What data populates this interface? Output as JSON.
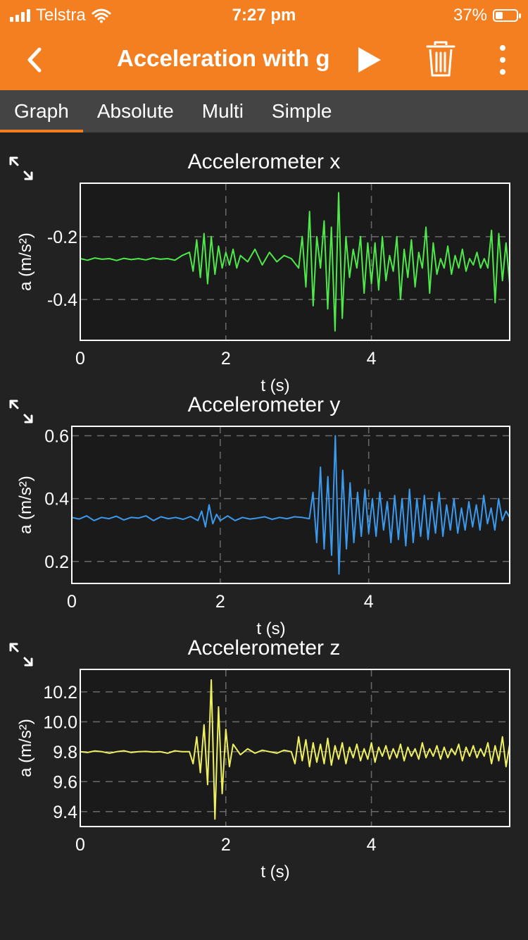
{
  "status": {
    "carrier": "Telstra",
    "time": "7:27 pm",
    "battery": "37%",
    "battery_level": 0.37
  },
  "toolbar": {
    "title": "Acceleration with g",
    "accent": "#f47f20"
  },
  "tabs": [
    {
      "label": "Graph",
      "active": true
    },
    {
      "label": "Absolute",
      "active": false
    },
    {
      "label": "Multi",
      "active": false
    },
    {
      "label": "Simple",
      "active": false
    }
  ],
  "chart_data": [
    {
      "type": "line",
      "title": "Accelerometer x",
      "xlabel": "t (s)",
      "ylabel": "a (m/s²)",
      "xlim": [
        0,
        5.9
      ],
      "ylim": [
        -0.53,
        -0.03
      ],
      "xticks": [
        {
          "v": 0,
          "label": "0"
        },
        {
          "v": 2,
          "label": "2"
        },
        {
          "v": 4,
          "label": "4"
        }
      ],
      "yticks": [
        {
          "v": -0.2,
          "label": "-0.2"
        },
        {
          "v": -0.4,
          "label": "-0.4"
        }
      ],
      "color": "#4ee84a",
      "grid": true,
      "series": [
        {
          "x": [
            0.0,
            0.1,
            0.2,
            0.3,
            0.4,
            0.5,
            0.6,
            0.7,
            0.8,
            0.9,
            1.0,
            1.1,
            1.2,
            1.3,
            1.4,
            1.5,
            1.55,
            1.6,
            1.65,
            1.7,
            1.75,
            1.8,
            1.85,
            1.9,
            1.95,
            2.0,
            2.05,
            2.1,
            2.15,
            2.2,
            2.3,
            2.4,
            2.5,
            2.6,
            2.7,
            2.8,
            2.9,
            3.0,
            3.05,
            3.1,
            3.15,
            3.2,
            3.25,
            3.3,
            3.35,
            3.4,
            3.45,
            3.5,
            3.55,
            3.6,
            3.65,
            3.7,
            3.75,
            3.8,
            3.85,
            3.9,
            3.95,
            4.0,
            4.05,
            4.1,
            4.15,
            4.2,
            4.25,
            4.3,
            4.35,
            4.4,
            4.45,
            4.5,
            4.55,
            4.6,
            4.65,
            4.7,
            4.75,
            4.8,
            4.85,
            4.9,
            4.95,
            5.0,
            5.05,
            5.1,
            5.15,
            5.2,
            5.25,
            5.3,
            5.35,
            5.4,
            5.45,
            5.5,
            5.55,
            5.6,
            5.65,
            5.7,
            5.75,
            5.8,
            5.85,
            5.9
          ],
          "y": [
            -0.27,
            -0.275,
            -0.268,
            -0.272,
            -0.27,
            -0.276,
            -0.269,
            -0.273,
            -0.27,
            -0.274,
            -0.268,
            -0.272,
            -0.27,
            -0.275,
            -0.26,
            -0.25,
            -0.31,
            -0.21,
            -0.33,
            -0.19,
            -0.35,
            -0.2,
            -0.32,
            -0.23,
            -0.3,
            -0.25,
            -0.29,
            -0.24,
            -0.3,
            -0.26,
            -0.28,
            -0.24,
            -0.29,
            -0.25,
            -0.28,
            -0.26,
            -0.27,
            -0.3,
            -0.2,
            -0.36,
            -0.12,
            -0.42,
            -0.2,
            -0.3,
            -0.15,
            -0.43,
            -0.17,
            -0.5,
            -0.06,
            -0.46,
            -0.2,
            -0.33,
            -0.24,
            -0.3,
            -0.2,
            -0.38,
            -0.22,
            -0.35,
            -0.22,
            -0.37,
            -0.2,
            -0.34,
            -0.26,
            -0.31,
            -0.2,
            -0.4,
            -0.24,
            -0.33,
            -0.21,
            -0.36,
            -0.25,
            -0.3,
            -0.17,
            -0.38,
            -0.22,
            -0.32,
            -0.27,
            -0.3,
            -0.23,
            -0.32,
            -0.26,
            -0.3,
            -0.24,
            -0.31,
            -0.27,
            -0.29,
            -0.25,
            -0.3,
            -0.27,
            -0.3,
            -0.18,
            -0.41,
            -0.19,
            -0.34,
            -0.22,
            -0.35
          ]
        }
      ]
    },
    {
      "type": "line",
      "title": "Accelerometer y",
      "xlabel": "t (s)",
      "ylabel": "a (m/s²)",
      "xlim": [
        0,
        5.9
      ],
      "ylim": [
        0.13,
        0.63
      ],
      "xticks": [
        {
          "v": 0,
          "label": "0"
        },
        {
          "v": 2,
          "label": "2"
        },
        {
          "v": 4,
          "label": "4"
        }
      ],
      "yticks": [
        {
          "v": 0.6,
          "label": "0.6"
        },
        {
          "v": 0.4,
          "label": "0.4"
        },
        {
          "v": 0.2,
          "label": "0.2"
        }
      ],
      "color": "#3b9aee",
      "grid": true,
      "series": [
        {
          "x": [
            0.0,
            0.1,
            0.2,
            0.3,
            0.4,
            0.5,
            0.6,
            0.7,
            0.8,
            0.9,
            1.0,
            1.1,
            1.2,
            1.3,
            1.4,
            1.5,
            1.6,
            1.7,
            1.75,
            1.8,
            1.85,
            1.9,
            1.95,
            2.0,
            2.1,
            2.2,
            2.3,
            2.4,
            2.5,
            2.6,
            2.7,
            2.8,
            2.9,
            3.0,
            3.1,
            3.2,
            3.25,
            3.3,
            3.35,
            3.4,
            3.45,
            3.5,
            3.55,
            3.6,
            3.65,
            3.7,
            3.75,
            3.8,
            3.85,
            3.9,
            3.95,
            4.0,
            4.05,
            4.1,
            4.15,
            4.2,
            4.25,
            4.3,
            4.35,
            4.4,
            4.45,
            4.5,
            4.55,
            4.6,
            4.65,
            4.7,
            4.75,
            4.8,
            4.85,
            4.9,
            4.95,
            5.0,
            5.05,
            5.1,
            5.15,
            5.2,
            5.25,
            5.3,
            5.35,
            5.4,
            5.45,
            5.5,
            5.55,
            5.6,
            5.65,
            5.7,
            5.75,
            5.8,
            5.85,
            5.9
          ],
          "y": [
            0.34,
            0.335,
            0.345,
            0.33,
            0.34,
            0.336,
            0.344,
            0.332,
            0.34,
            0.338,
            0.345,
            0.33,
            0.342,
            0.336,
            0.34,
            0.334,
            0.343,
            0.33,
            0.36,
            0.31,
            0.38,
            0.32,
            0.35,
            0.33,
            0.345,
            0.33,
            0.34,
            0.335,
            0.338,
            0.342,
            0.334,
            0.34,
            0.336,
            0.342,
            0.34,
            0.336,
            0.42,
            0.26,
            0.5,
            0.24,
            0.47,
            0.22,
            0.6,
            0.16,
            0.49,
            0.24,
            0.45,
            0.26,
            0.42,
            0.28,
            0.43,
            0.29,
            0.4,
            0.28,
            0.42,
            0.3,
            0.39,
            0.26,
            0.41,
            0.27,
            0.4,
            0.25,
            0.43,
            0.26,
            0.4,
            0.28,
            0.41,
            0.27,
            0.39,
            0.29,
            0.42,
            0.28,
            0.38,
            0.3,
            0.4,
            0.29,
            0.37,
            0.3,
            0.39,
            0.31,
            0.38,
            0.3,
            0.41,
            0.32,
            0.37,
            0.3,
            0.4,
            0.33,
            0.36,
            0.34
          ]
        }
      ]
    },
    {
      "type": "line",
      "title": "Accelerometer z",
      "xlabel": "t (s)",
      "ylabel": "a (m/s²)",
      "xlim": [
        0,
        5.9
      ],
      "ylim": [
        9.3,
        10.35
      ],
      "xticks": [
        {
          "v": 0,
          "label": "0"
        },
        {
          "v": 2,
          "label": "2"
        },
        {
          "v": 4,
          "label": "4"
        }
      ],
      "yticks": [
        {
          "v": 10.2,
          "label": "10.2"
        },
        {
          "v": 10.0,
          "label": "10.0"
        },
        {
          "v": 9.8,
          "label": "9.8"
        },
        {
          "v": 9.6,
          "label": "9.6"
        },
        {
          "v": 9.4,
          "label": "9.4"
        }
      ],
      "color": "#eef062",
      "grid": true,
      "series": [
        {
          "x": [
            0.0,
            0.1,
            0.2,
            0.3,
            0.4,
            0.5,
            0.6,
            0.7,
            0.8,
            0.9,
            1.0,
            1.1,
            1.2,
            1.3,
            1.4,
            1.5,
            1.55,
            1.6,
            1.65,
            1.7,
            1.75,
            1.8,
            1.85,
            1.9,
            1.95,
            2.0,
            2.05,
            2.1,
            2.2,
            2.3,
            2.4,
            2.5,
            2.6,
            2.7,
            2.8,
            2.9,
            2.95,
            3.0,
            3.05,
            3.1,
            3.15,
            3.2,
            3.25,
            3.3,
            3.35,
            3.4,
            3.45,
            3.5,
            3.55,
            3.6,
            3.65,
            3.7,
            3.75,
            3.8,
            3.85,
            3.9,
            3.95,
            4.0,
            4.05,
            4.1,
            4.15,
            4.2,
            4.25,
            4.3,
            4.35,
            4.4,
            4.45,
            4.5,
            4.55,
            4.6,
            4.65,
            4.7,
            4.75,
            4.8,
            4.85,
            4.9,
            4.95,
            5.0,
            5.05,
            5.1,
            5.15,
            5.2,
            5.25,
            5.3,
            5.35,
            5.4,
            5.45,
            5.5,
            5.55,
            5.6,
            5.65,
            5.7,
            5.75,
            5.8,
            5.85,
            5.9
          ],
          "y": [
            9.8,
            9.795,
            9.805,
            9.8,
            9.79,
            9.8,
            9.806,
            9.795,
            9.8,
            9.802,
            9.798,
            9.8,
            9.79,
            9.806,
            9.8,
            9.8,
            9.72,
            9.9,
            9.66,
            9.98,
            9.58,
            10.28,
            9.35,
            10.1,
            9.52,
            9.95,
            9.7,
            9.85,
            9.78,
            9.82,
            9.79,
            9.81,
            9.8,
            9.79,
            9.81,
            9.8,
            9.72,
            9.9,
            9.74,
            9.88,
            9.7,
            9.86,
            9.73,
            9.85,
            9.72,
            9.89,
            9.71,
            9.84,
            9.75,
            9.86,
            9.72,
            9.83,
            9.76,
            9.85,
            9.74,
            9.82,
            9.75,
            9.86,
            9.73,
            9.83,
            9.77,
            9.84,
            9.75,
            9.82,
            9.76,
            9.85,
            9.74,
            9.83,
            9.77,
            9.82,
            9.75,
            9.86,
            9.76,
            9.82,
            9.77,
            9.84,
            9.75,
            9.83,
            9.76,
            9.82,
            9.78,
            9.85,
            9.74,
            9.83,
            9.77,
            9.84,
            9.76,
            9.82,
            9.77,
            9.86,
            9.72,
            9.84,
            9.74,
            9.9,
            9.7,
            9.85
          ]
        }
      ]
    }
  ]
}
